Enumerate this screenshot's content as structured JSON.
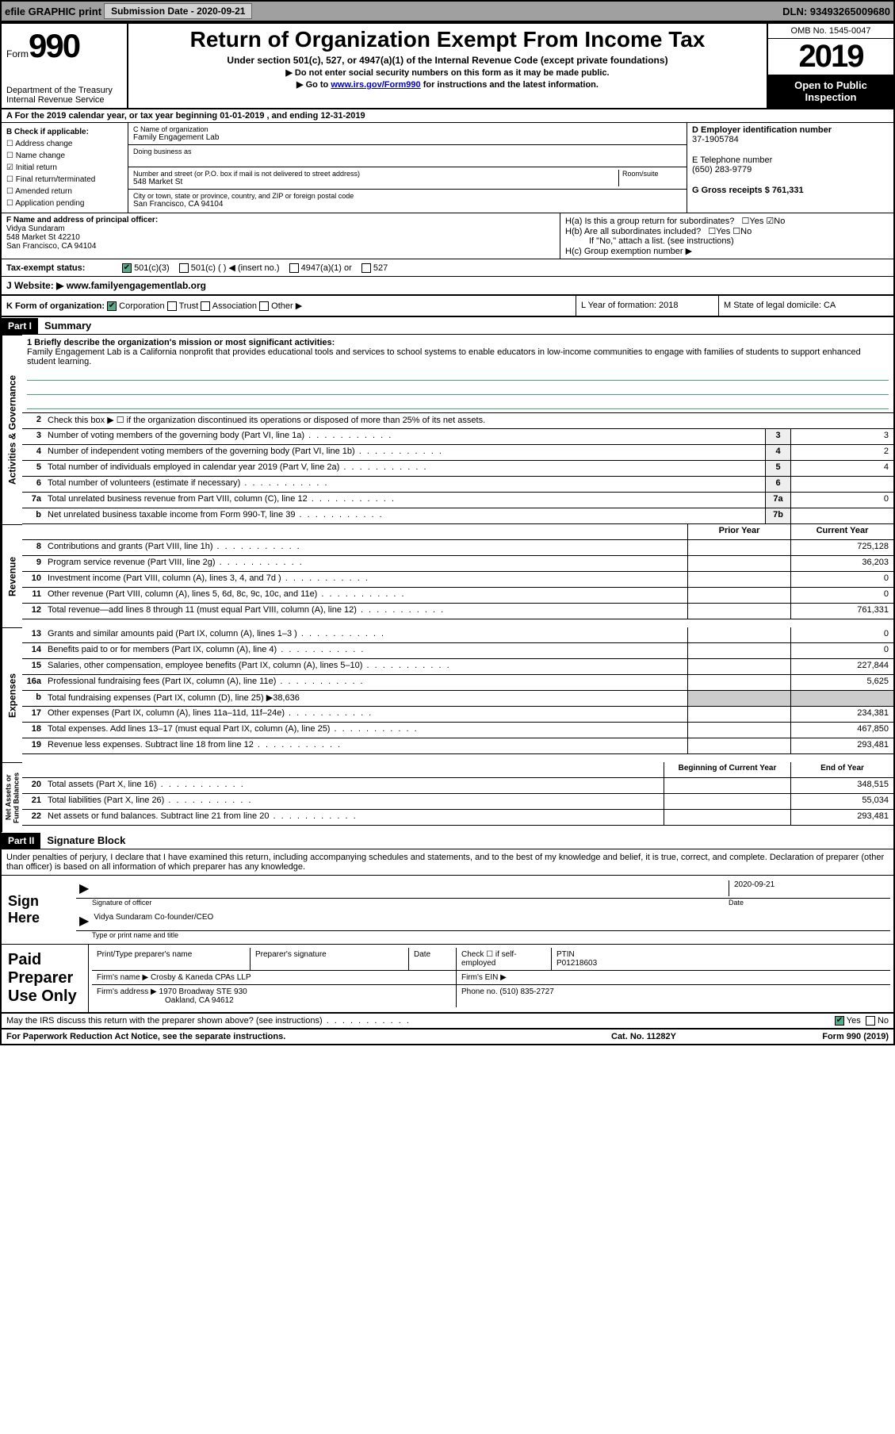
{
  "topbar": {
    "efile": "efile GRAPHIC print",
    "submission": "Submission Date - 2020-09-21",
    "dln": "DLN: 93493265009680"
  },
  "header": {
    "form_prefix": "Form",
    "form_number": "990",
    "dept1": "Department of the Treasury",
    "dept2": "Internal Revenue Service",
    "title": "Return of Organization Exempt From Income Tax",
    "subtitle": "Under section 501(c), 527, or 4947(a)(1) of the Internal Revenue Code (except private foundations)",
    "note1": "▶ Do not enter social security numbers on this form as it may be made public.",
    "note2_prefix": "▶ Go to ",
    "note2_link": "www.irs.gov/Form990",
    "note2_suffix": " for instructions and the latest information.",
    "omb": "OMB No. 1545-0047",
    "year": "2019",
    "open1": "Open to Public",
    "open2": "Inspection"
  },
  "rowA": "A For the 2019 calendar year, or tax year beginning 01-01-2019   , and ending 12-31-2019",
  "colB": {
    "label": "B Check if applicable:",
    "items": [
      "Address change",
      "Name change",
      "Initial return",
      "Final return/terminated",
      "Amended return",
      "Application pending"
    ],
    "checked_index": 2
  },
  "colC": {
    "name_label": "C Name of organization",
    "name": "Family Engagement Lab",
    "dba_label": "Doing business as",
    "street_label": "Number and street (or P.O. box if mail is not delivered to street address)",
    "room_label": "Room/suite",
    "street": "548 Market St",
    "city_label": "City or town, state or province, country, and ZIP or foreign postal code",
    "city": "San Francisco, CA  94104"
  },
  "colD": {
    "ein_label": "D Employer identification number",
    "ein": "37-1905784",
    "phone_label": "E Telephone number",
    "phone": "(650) 283-9779",
    "gross_label": "G Gross receipts $ 761,331"
  },
  "rowF": {
    "label": "F  Name and address of principal officer:",
    "name": "Vidya Sundaram",
    "street": "548 Market St 42210",
    "city": "San Francisco, CA  94104",
    "ha": "H(a)  Is this a group return for subordinates?",
    "hb": "H(b)  Are all subordinates included?",
    "hb_note": "If \"No,\" attach a list. (see instructions)",
    "hc": "H(c)  Group exemption number ▶",
    "yes": "Yes",
    "no": "No"
  },
  "rowTax": {
    "label": "Tax-exempt status:",
    "opt1": "501(c)(3)",
    "opt2": "501(c) (  ) ◀ (insert no.)",
    "opt3": "4947(a)(1) or",
    "opt4": "527"
  },
  "rowJ": {
    "label": "J Website: ▶",
    "value": "  www.familyengagementlab.org"
  },
  "rowK": {
    "label": "K Form of organization:",
    "opts": [
      "Corporation",
      "Trust",
      "Association",
      "Other ▶"
    ],
    "year_label": "L Year of formation: 2018",
    "state_label": "M State of legal domicile: CA"
  },
  "parts": {
    "p1": "Part I",
    "p1_title": "Summary",
    "p2": "Part II",
    "p2_title": "Signature Block"
  },
  "summary": {
    "q1_label": "1  Briefly describe the organization's mission or most significant activities:",
    "q1_text": "Family Engagement Lab is a California nonprofit that provides educational tools and services to school systems to enable educators in low-income communities to engage with families of students to support enhanced student learning.",
    "q2": "Check this box ▶ ☐  if the organization discontinued its operations or disposed of more than 25% of its net assets.",
    "side1": "Activities & Governance",
    "side2": "Revenue",
    "side3": "Expenses",
    "side4": "Net Assets or Fund Balances",
    "prior": "Prior Year",
    "current": "Current Year",
    "beg": "Beginning of Current Year",
    "end": "End of Year"
  },
  "lines_gov": [
    {
      "n": "3",
      "d": "Number of voting members of the governing body (Part VI, line 1a)",
      "box": "3",
      "v": "3"
    },
    {
      "n": "4",
      "d": "Number of independent voting members of the governing body (Part VI, line 1b)",
      "box": "4",
      "v": "2"
    },
    {
      "n": "5",
      "d": "Total number of individuals employed in calendar year 2019 (Part V, line 2a)",
      "box": "5",
      "v": "4"
    },
    {
      "n": "6",
      "d": "Total number of volunteers (estimate if necessary)",
      "box": "6",
      "v": ""
    },
    {
      "n": "7a",
      "d": "Total unrelated business revenue from Part VIII, column (C), line 12",
      "box": "7a",
      "v": "0"
    },
    {
      "n": "b",
      "d": "Net unrelated business taxable income from Form 990-T, line 39",
      "box": "7b",
      "v": ""
    }
  ],
  "lines_rev": [
    {
      "n": "8",
      "d": "Contributions and grants (Part VIII, line 1h)",
      "p": "",
      "c": "725,128"
    },
    {
      "n": "9",
      "d": "Program service revenue (Part VIII, line 2g)",
      "p": "",
      "c": "36,203"
    },
    {
      "n": "10",
      "d": "Investment income (Part VIII, column (A), lines 3, 4, and 7d )",
      "p": "",
      "c": "0"
    },
    {
      "n": "11",
      "d": "Other revenue (Part VIII, column (A), lines 5, 6d, 8c, 9c, 10c, and 11e)",
      "p": "",
      "c": "0"
    },
    {
      "n": "12",
      "d": "Total revenue—add lines 8 through 11 (must equal Part VIII, column (A), line 12)",
      "p": "",
      "c": "761,331"
    }
  ],
  "lines_exp": [
    {
      "n": "13",
      "d": "Grants and similar amounts paid (Part IX, column (A), lines 1–3 )",
      "p": "",
      "c": "0"
    },
    {
      "n": "14",
      "d": "Benefits paid to or for members (Part IX, column (A), line 4)",
      "p": "",
      "c": "0"
    },
    {
      "n": "15",
      "d": "Salaries, other compensation, employee benefits (Part IX, column (A), lines 5–10)",
      "p": "",
      "c": "227,844"
    },
    {
      "n": "16a",
      "d": "Professional fundraising fees (Part IX, column (A), line 11e)",
      "p": "",
      "c": "5,625"
    },
    {
      "n": "b",
      "d": "Total fundraising expenses (Part IX, column (D), line 25) ▶38,636",
      "p": "shade",
      "c": "shade"
    },
    {
      "n": "17",
      "d": "Other expenses (Part IX, column (A), lines 11a–11d, 11f–24e)",
      "p": "",
      "c": "234,381"
    },
    {
      "n": "18",
      "d": "Total expenses. Add lines 13–17 (must equal Part IX, column (A), line 25)",
      "p": "",
      "c": "467,850"
    },
    {
      "n": "19",
      "d": "Revenue less expenses. Subtract line 18 from line 12",
      "p": "",
      "c": "293,481"
    }
  ],
  "lines_net": [
    {
      "n": "20",
      "d": "Total assets (Part X, line 16)",
      "p": "",
      "c": "348,515"
    },
    {
      "n": "21",
      "d": "Total liabilities (Part X, line 26)",
      "p": "",
      "c": "55,034"
    },
    {
      "n": "22",
      "d": "Net assets or fund balances. Subtract line 21 from line 20",
      "p": "",
      "c": "293,481"
    }
  ],
  "sig": {
    "penalty": "Under penalties of perjury, I declare that I have examined this return, including accompanying schedules and statements, and to the best of my knowledge and belief, it is true, correct, and complete. Declaration of preparer (other than officer) is based on all information of which preparer has any knowledge.",
    "sign_here": "Sign Here",
    "sig_label": "Signature of officer",
    "date_label": "Date",
    "date_val": "2020-09-21",
    "name_val": "Vidya Sundaram  Co-founder/CEO",
    "name_label": "Type or print name and title",
    "paid": "Paid Preparer Use Only",
    "prep_name_label": "Print/Type preparer's name",
    "prep_sig_label": "Preparer's signature",
    "prep_date_label": "Date",
    "check_label": "Check ☐ if self-employed",
    "ptin_label": "PTIN",
    "ptin_val": "P01218603",
    "firm_name_label": "Firm's name    ▶",
    "firm_name": "Crosby & Kaneda CPAs LLP",
    "firm_ein_label": "Firm's EIN ▶",
    "firm_addr_label": "Firm's address ▶",
    "firm_addr1": "1970 Broadway STE 930",
    "firm_addr2": "Oakland, CA  94612",
    "phone_label": "Phone no. (510) 835-2727",
    "discuss": "May the IRS discuss this return with the preparer shown above? (see instructions)"
  },
  "footer": {
    "paperwork": "For Paperwork Reduction Act Notice, see the separate instructions.",
    "cat": "Cat. No. 11282Y",
    "form": "Form 990 (2019)"
  }
}
